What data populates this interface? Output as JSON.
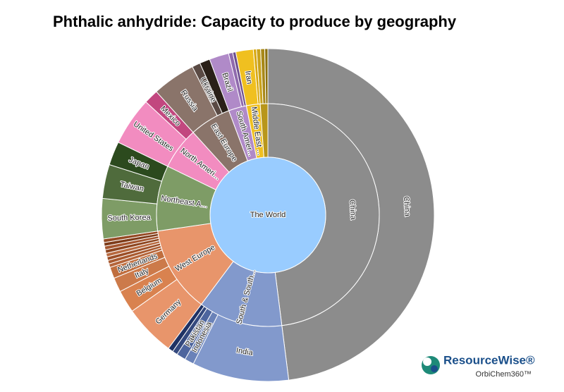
{
  "chart_data": {
    "type": "sunburst",
    "title": "Phthalic anhydride: Capacity to produce by geography",
    "root": "The World",
    "root_color": "#99ccff",
    "regions": [
      {
        "name": "China",
        "color": "#8c8c8c",
        "children": [
          {
            "name": "China",
            "color": "#8c8c8c",
            "value": 48.0
          }
        ]
      },
      {
        "name": "South & South...",
        "color": "#8299cc",
        "children": [
          {
            "name": "India",
            "color": "#8299cc",
            "value": 9.4
          },
          {
            "name": "Indonesia",
            "color": "#6a82b8",
            "value": 0.9
          },
          {
            "name": "Pakistan",
            "color": "#4d659e",
            "value": 0.9
          },
          {
            "name": null,
            "color": "#34497e",
            "value": 0.5
          },
          {
            "name": null,
            "color": "#1f3264",
            "value": 0.5
          }
        ]
      },
      {
        "name": "West Europe",
        "color": "#e8956b",
        "children": [
          {
            "name": "Germany",
            "color": "#e8956b",
            "value": 5.0
          },
          {
            "name": "Belgium",
            "color": "#d9824f",
            "value": 2.2
          },
          {
            "name": "Italy",
            "color": "#cc7a4a",
            "value": 1.4
          },
          {
            "name": "Netherlands",
            "color": "#c06e3e",
            "value": 1.1
          },
          {
            "name": null,
            "color": "#b5653a",
            "value": 0.35
          },
          {
            "name": null,
            "color": "#a95a30",
            "value": 0.35
          },
          {
            "name": null,
            "color": "#9c4f28",
            "value": 0.35
          },
          {
            "name": null,
            "color": "#b86a40",
            "value": 0.35
          },
          {
            "name": null,
            "color": "#8e4620",
            "value": 0.35
          },
          {
            "name": null,
            "color": "#a45630",
            "value": 0.35
          },
          {
            "name": null,
            "color": "#7e3c1a",
            "value": 0.35
          },
          {
            "name": null,
            "color": "#954a24",
            "value": 0.35
          }
        ]
      },
      {
        "name": "Northeast A...",
        "color": "#7e9c66",
        "children": [
          {
            "name": "South Korea",
            "color": "#7e9c66",
            "value": 3.9
          },
          {
            "name": "Taiwan",
            "color": "#4f6b3c",
            "value": 3.3
          },
          {
            "name": "Japan",
            "color": "#2c4a1e",
            "value": 2.3
          }
        ]
      },
      {
        "name": "North Ameri...",
        "color": "#f28cc0",
        "children": [
          {
            "name": "United States",
            "color": "#f28cc0",
            "value": 4.7
          },
          {
            "name": "Mexico",
            "color": "#c2477f",
            "value": 1.4
          }
        ]
      },
      {
        "name": "East Europe",
        "color": "#8a746a",
        "children": [
          {
            "name": "Russia",
            "color": "#8a746a",
            "value": 4.2
          },
          {
            "name": "Ukraine",
            "color": "#5a4a44",
            "value": 0.8
          },
          {
            "name": null,
            "color": "#2a2018",
            "value": 1.0
          }
        ]
      },
      {
        "name": "South Amer...",
        "color": "#b08ac8",
        "children": [
          {
            "name": "Brazil",
            "color": "#b08ac8",
            "value": 1.9
          },
          {
            "name": null,
            "color": "#8f6aad",
            "value": 0.4
          },
          {
            "name": null,
            "color": "#6e4f8e",
            "value": 0.3
          }
        ]
      },
      {
        "name": "Middle East ...",
        "color": "#f0c020",
        "children": [
          {
            "name": "Iran",
            "color": "#f0c020",
            "value": 1.7
          },
          {
            "name": null,
            "color": "#d8a810",
            "value": 0.3
          }
        ]
      },
      {
        "name": null,
        "color": "#b8961a",
        "children": [
          {
            "name": null,
            "color": "#c9a21c",
            "value": 0.4
          },
          {
            "name": null,
            "color": "#a88818",
            "value": 0.4
          },
          {
            "name": null,
            "color": "#8a7010",
            "value": 0.3
          }
        ]
      }
    ],
    "logo": {
      "name": "ResourceWise®",
      "sub": "OrbiChem360™"
    }
  }
}
